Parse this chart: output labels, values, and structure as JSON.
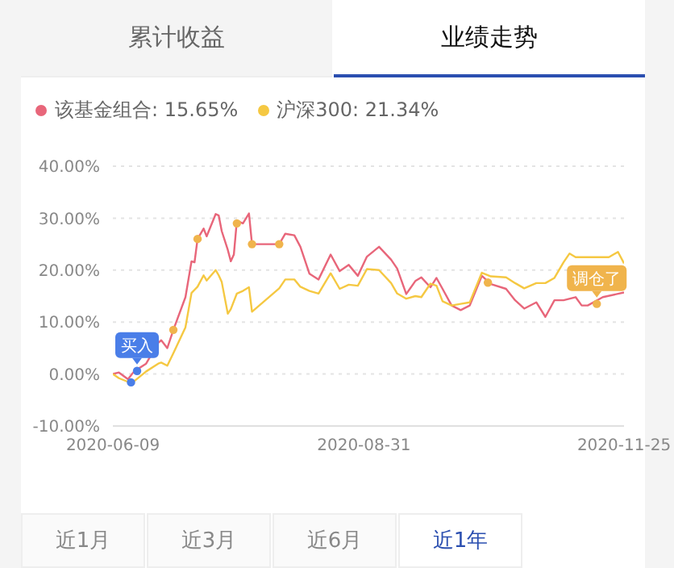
{
  "chart_data": {
    "type": "line",
    "x": [
      "2020-06-09",
      "2020-06-11",
      "2020-06-14",
      "2020-06-16",
      "2020-06-20",
      "2020-06-24",
      "2020-06-25",
      "2020-06-27",
      "2020-06-29",
      "2020-07-03",
      "2020-07-05",
      "2020-07-06",
      "2020-07-07",
      "2020-07-09",
      "2020-07-10",
      "2020-07-13",
      "2020-07-14",
      "2020-07-15",
      "2020-07-17",
      "2020-07-18",
      "2020-07-19",
      "2020-07-20",
      "2020-07-22",
      "2020-07-24",
      "2020-07-25",
      "2020-08-03",
      "2020-08-05",
      "2020-08-08",
      "2020-08-10",
      "2020-08-13",
      "2020-08-16",
      "2020-08-20",
      "2020-08-23",
      "2020-08-26",
      "2020-08-29",
      "2020-09-01",
      "2020-09-05",
      "2020-09-09",
      "2020-09-11",
      "2020-09-14",
      "2020-09-17",
      "2020-09-19",
      "2020-09-22",
      "2020-09-24",
      "2020-09-26",
      "2020-09-29",
      "2020-10-02",
      "2020-10-05",
      "2020-10-09",
      "2020-10-12",
      "2020-10-17",
      "2020-10-20",
      "2020-10-23",
      "2020-10-27",
      "2020-10-30",
      "2020-11-02",
      "2020-11-05",
      "2020-11-07",
      "2020-11-09",
      "2020-11-11",
      "2020-11-13",
      "2020-11-18",
      "2020-11-20",
      "2020-11-23",
      "2020-11-25"
    ],
    "series": [
      {
        "name": "该基金组合: 15.65%",
        "color": "#e8667a",
        "values": [
          0,
          0.3,
          -1,
          0.5,
          2,
          6,
          6.5,
          5,
          8.5,
          14.8,
          21.7,
          21.5,
          26,
          28,
          26.5,
          30.8,
          30.5,
          27.5,
          23.9,
          21.7,
          23,
          29.5,
          29,
          30.9,
          25,
          25,
          27,
          26.7,
          24.5,
          19.3,
          18.2,
          23,
          19.8,
          21,
          18.9,
          22.6,
          24.5,
          22,
          20.3,
          15.4,
          17.9,
          18.6,
          16.7,
          18.5,
          16.4,
          13.2,
          12.3,
          13.2,
          18.9,
          17.3,
          16.4,
          14.2,
          12.6,
          13.8,
          11,
          14.2,
          14.2,
          null,
          14.8,
          13.2,
          13.2,
          14.8,
          null,
          null,
          15.7
        ]
      },
      {
        "name": "沪深300: 21.34%",
        "color": "#f5c842",
        "values": [
          0,
          -0.8,
          -1.5,
          -1.4,
          0.5,
          2,
          2.2,
          1.6,
          4,
          9,
          15.6,
          16.2,
          16.8,
          19,
          18,
          20,
          19,
          17.7,
          11.6,
          12.5,
          14,
          15.5,
          16,
          16.7,
          12,
          16.5,
          18.2,
          18.2,
          16.8,
          16,
          15.5,
          19.4,
          16.4,
          17.2,
          17,
          20.2,
          20,
          17.5,
          15.5,
          14.5,
          15,
          14.8,
          17.4,
          17,
          14,
          13.2,
          13.5,
          13.8,
          19.5,
          18.8,
          18.6,
          17.5,
          16.5,
          17.5,
          17.5,
          18.5,
          21.5,
          23.2,
          22.5,
          null,
          null,
          null,
          22.5,
          23.5,
          21.3
        ]
      },
      {
        "type": "scatter",
        "color": "#4a7ee8",
        "marker": "circle",
        "x": [
          "2020-06-15",
          "2020-06-17"
        ],
        "values": [
          -1.6,
          0.6
        ]
      },
      {
        "type": "scatter",
        "color": "#f0b44c",
        "marker": "circle",
        "x": [
          "2020-06-29",
          "2020-07-07",
          "2020-07-20",
          "2020-07-25",
          "2020-08-03",
          "2020-10-11",
          "2020-11-16"
        ],
        "values": [
          8.5,
          26,
          29,
          25,
          25,
          17.6,
          13.5
        ]
      }
    ],
    "xlim": [
      "2020-06-09",
      "2020-11-25"
    ],
    "xticks": [
      {
        "value": "2020-06-09",
        "label": "2020-06-09"
      },
      {
        "value": "2020-08-31",
        "label": "2020-08-31"
      },
      {
        "value": "2020-11-25",
        "label": "2020-11-25"
      }
    ],
    "ylim": [
      -10,
      40
    ],
    "yticks": [
      {
        "value": -10,
        "label": "-10.00%"
      },
      {
        "value": 0,
        "label": "0.00%"
      },
      {
        "value": 10,
        "label": "10.00%"
      },
      {
        "value": 20,
        "label": "20.00%"
      },
      {
        "value": 30,
        "label": "30.00%"
      },
      {
        "value": 40,
        "label": "40.00%"
      }
    ],
    "grid": "y",
    "legend": "top left",
    "marker": "none",
    "line_style": "solid",
    "annotations": [
      {
        "text": "买入",
        "x": "2020-06-17",
        "y": 0.6
      },
      {
        "text": "调仓了",
        "x": "2020-11-16",
        "y": 13.5
      },
      "累计收益",
      "业绩走势",
      "近1月",
      "近3月",
      "近6月",
      "近1年"
    ]
  }
}
